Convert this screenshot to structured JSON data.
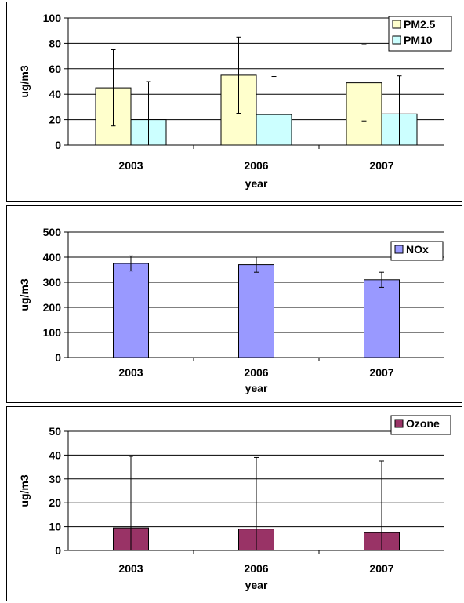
{
  "chart_data": [
    {
      "type": "bar",
      "categories": [
        "2003",
        "2006",
        "2007"
      ],
      "xlabel": "year",
      "ylabel": "ug/m3",
      "ylim": [
        0,
        100
      ],
      "yticks": [
        "0",
        "20",
        "40",
        "60",
        "80",
        "100"
      ],
      "grid": true,
      "legend_position": "top-right",
      "series": [
        {
          "name": "PM2.5",
          "color": "#FFFFCC",
          "values": [
            45,
            55,
            49
          ],
          "errors": [
            30,
            30,
            30
          ]
        },
        {
          "name": "PM10",
          "color": "#CCFFFF",
          "values": [
            20,
            24,
            24.5
          ],
          "errors": [
            30,
            30,
            30
          ]
        }
      ]
    },
    {
      "type": "bar",
      "categories": [
        "2003",
        "2006",
        "2007"
      ],
      "xlabel": "year",
      "ylabel": "ug/m3",
      "ylim": [
        0,
        500
      ],
      "yticks": [
        "0",
        "100",
        "200",
        "300",
        "400",
        "500"
      ],
      "grid": true,
      "legend_position": "top-right",
      "series": [
        {
          "name": "NOx",
          "color": "#9999FF",
          "values": [
            375,
            370,
            310
          ],
          "errors": [
            30,
            30,
            30
          ]
        }
      ]
    },
    {
      "type": "bar",
      "categories": [
        "2003",
        "2006",
        "2007"
      ],
      "xlabel": "year",
      "ylabel": "ug/m3",
      "ylim": [
        0,
        50
      ],
      "yticks": [
        "0",
        "10",
        "20",
        "30",
        "40",
        "50"
      ],
      "grid": true,
      "legend_position": "top-right",
      "series": [
        {
          "name": "Ozone",
          "color": "#993366",
          "values": [
            9.5,
            9,
            7.5
          ],
          "errors": [
            30,
            30,
            30
          ]
        }
      ]
    }
  ]
}
